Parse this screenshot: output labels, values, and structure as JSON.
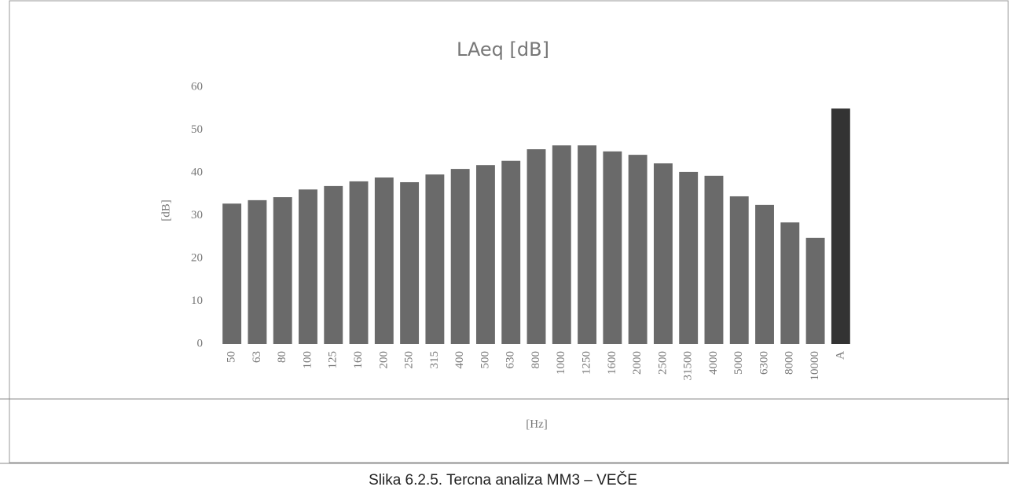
{
  "chart_data": {
    "type": "bar",
    "title": "LAeq [dB]",
    "y_label": "[dB]",
    "x_label": "[Hz]",
    "caption": "Slika 6.2.5. Tercna analiza MM3 – VEČE",
    "categories": [
      "50",
      "63",
      "80",
      "100",
      "125",
      "160",
      "200",
      "250",
      "315",
      "400",
      "500",
      "630",
      "800",
      "1000",
      "1250",
      "1600",
      "2000",
      "2500",
      "31500",
      "4000",
      "5000",
      "6300",
      "8000",
      "10000",
      "A"
    ],
    "values": [
      32.8,
      33.6,
      34.3,
      36.1,
      36.9,
      38,
      38.9,
      37.8,
      39.6,
      40.9,
      41.8,
      42.8,
      45.5,
      46.4,
      46.4,
      45,
      44.2,
      42.2,
      40.2,
      39.3,
      34.5,
      32.5,
      28.4,
      24.8,
      55
    ],
    "colors": [
      "#6a6a6a",
      "#6a6a6a",
      "#6a6a6a",
      "#6a6a6a",
      "#6a6a6a",
      "#6a6a6a",
      "#6a6a6a",
      "#6a6a6a",
      "#6a6a6a",
      "#6a6a6a",
      "#6a6a6a",
      "#6a6a6a",
      "#6a6a6a",
      "#6a6a6a",
      "#6a6a6a",
      "#6a6a6a",
      "#6a6a6a",
      "#6a6a6a",
      "#6a6a6a",
      "#6a6a6a",
      "#6a6a6a",
      "#6a6a6a",
      "#6a6a6a",
      "#6a6a6a",
      "#333333"
    ],
    "ylim": [
      0,
      60
    ],
    "yticks": [
      0,
      10,
      20,
      30,
      40,
      50,
      60
    ],
    "grid": false
  }
}
